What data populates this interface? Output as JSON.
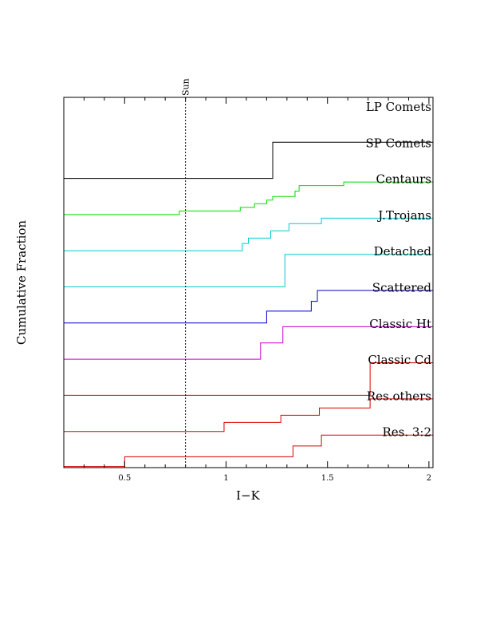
{
  "chart_data": {
    "type": "line",
    "xlabel": "I−K",
    "ylabel": "Cumulative Fraction",
    "xlim": [
      0.2,
      2.02
    ],
    "xticks": [
      {
        "value": 0.5,
        "label": "0.5"
      },
      {
        "value": 1.0,
        "label": "1"
      },
      {
        "value": 1.5,
        "label": "1.5"
      },
      {
        "value": 2.0,
        "label": "2"
      }
    ],
    "y_tick_labels": "none",
    "reference_line": {
      "x": 0.8,
      "label": "Sun",
      "style": "dashed"
    },
    "series": [
      {
        "name": "LP Comets",
        "color": "#000000",
        "steps": []
      },
      {
        "name": "SP Comets",
        "color": "#000000",
        "steps": [
          {
            "x": 1.23,
            "y": 1.0
          }
        ]
      },
      {
        "name": "Centaurs",
        "color": "#00dd00",
        "steps": [
          {
            "x": 0.77,
            "y": 0.1
          },
          {
            "x": 1.07,
            "y": 0.2
          },
          {
            "x": 1.14,
            "y": 0.3
          },
          {
            "x": 1.2,
            "y": 0.4
          },
          {
            "x": 1.23,
            "y": 0.5
          },
          {
            "x": 1.34,
            "y": 0.65
          },
          {
            "x": 1.36,
            "y": 0.8
          },
          {
            "x": 1.58,
            "y": 0.9
          },
          {
            "x": 2.02,
            "y": 1.0
          }
        ]
      },
      {
        "name": "J.Trojans",
        "color": "#00cccc",
        "steps": [
          {
            "x": 1.08,
            "y": 0.2
          },
          {
            "x": 1.11,
            "y": 0.35
          },
          {
            "x": 1.22,
            "y": 0.55
          },
          {
            "x": 1.31,
            "y": 0.75
          },
          {
            "x": 1.47,
            "y": 0.9
          },
          {
            "x": 2.02,
            "y": 1.0
          }
        ]
      },
      {
        "name": "Detached",
        "color": "#00cccc",
        "steps": [
          {
            "x": 1.29,
            "y": 0.9
          },
          {
            "x": 2.02,
            "y": 1.0
          }
        ]
      },
      {
        "name": "Scattered",
        "color": "#0000cc",
        "steps": [
          {
            "x": 1.2,
            "y": 0.33
          },
          {
            "x": 1.42,
            "y": 0.6
          },
          {
            "x": 1.45,
            "y": 0.9
          },
          {
            "x": 2.02,
            "y": 1.0
          }
        ]
      },
      {
        "name": "Classic Ht",
        "color": "#cc00cc",
        "steps": [
          {
            "x": 1.17,
            "y": 0.45
          },
          {
            "x": 1.28,
            "y": 0.9
          },
          {
            "x": 2.02,
            "y": 1.0
          }
        ]
      },
      {
        "name": "Classic Cd",
        "color": "#dd0000",
        "steps": [
          {
            "x": 1.71,
            "y": 0.9
          },
          {
            "x": 2.02,
            "y": 1.0
          }
        ]
      },
      {
        "name": "Res.others",
        "color": "#dd0000",
        "steps": [
          {
            "x": 0.99,
            "y": 0.25
          },
          {
            "x": 1.27,
            "y": 0.45
          },
          {
            "x": 1.46,
            "y": 0.65
          },
          {
            "x": 1.71,
            "y": 0.9
          },
          {
            "x": 2.02,
            "y": 1.0
          }
        ]
      },
      {
        "name": "Res. 3:2",
        "color": "#dd0000",
        "steps": [
          {
            "x": 0.2,
            "y": 0.03
          },
          {
            "x": 0.5,
            "y": 0.3
          },
          {
            "x": 1.33,
            "y": 0.6
          },
          {
            "x": 1.47,
            "y": 0.9
          },
          {
            "x": 2.02,
            "y": 1.0
          }
        ]
      }
    ]
  }
}
